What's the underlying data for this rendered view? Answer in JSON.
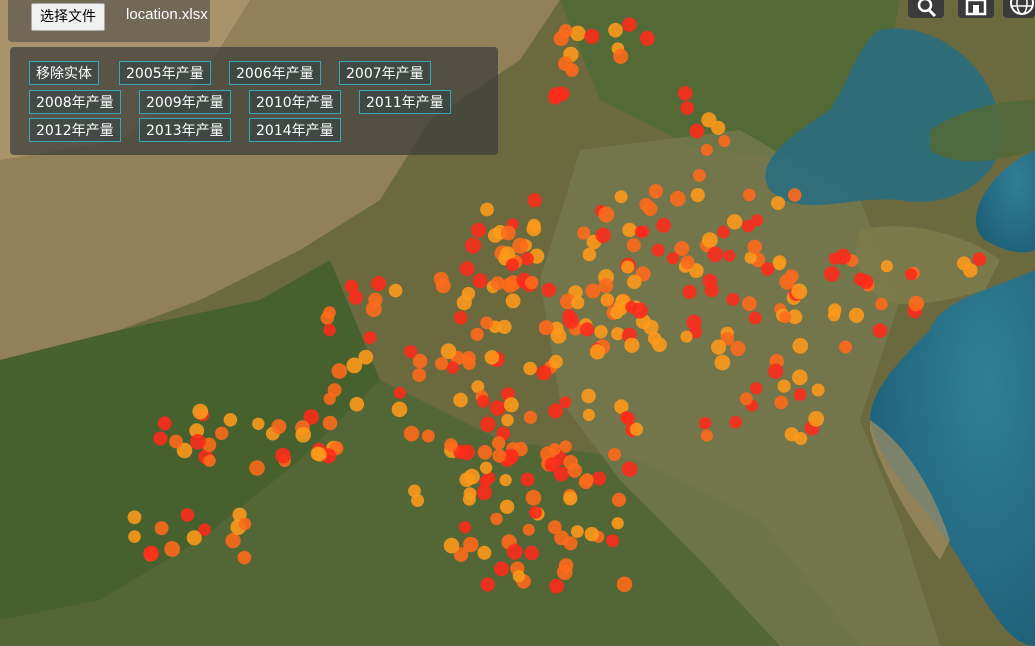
{
  "file_picker": {
    "button_label": "选择文件",
    "file_name": "location.xlsx"
  },
  "layer_buttons": [
    {
      "label": "移除实体"
    },
    {
      "label": "2005年产量"
    },
    {
      "label": "2006年产量"
    },
    {
      "label": "2007年产量"
    },
    {
      "label": "2008年产量"
    },
    {
      "label": "2009年产量"
    },
    {
      "label": "2010年产量"
    },
    {
      "label": "2011年产量"
    },
    {
      "label": "2012年产量"
    },
    {
      "label": "2013年产量"
    },
    {
      "label": "2014年产量"
    }
  ],
  "toolbar": [
    {
      "name": "search-icon"
    },
    {
      "name": "home-icon"
    },
    {
      "name": "globe-icon"
    }
  ],
  "colors": {
    "point_red": "#ff2a1a",
    "point_orange": "#ff6a1a",
    "point_amber": "#ff9a1a",
    "button_border": "#38a8b8"
  }
}
